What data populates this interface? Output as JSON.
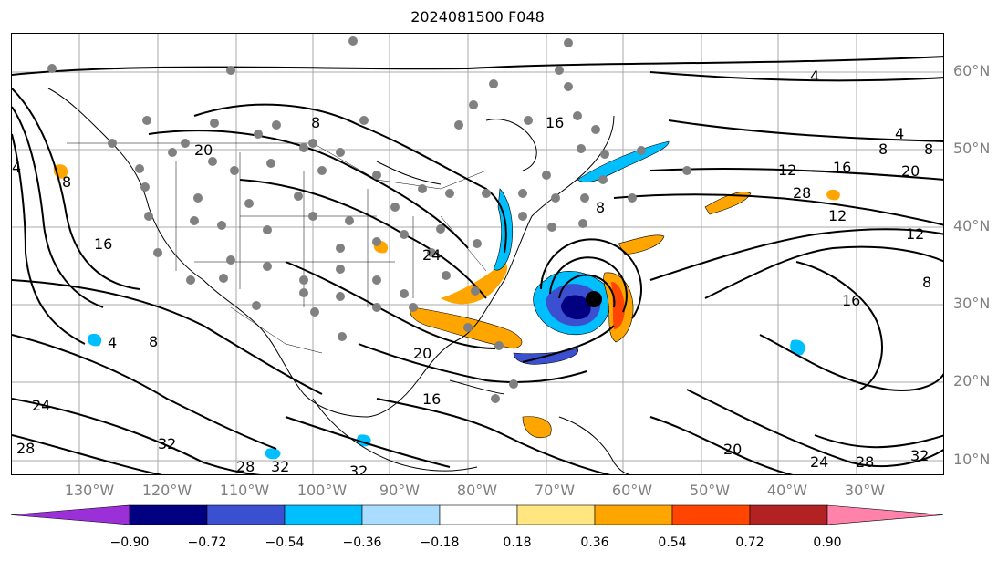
{
  "title": "2024081500 F048",
  "lat_labels": [
    "60°N",
    "50°N",
    "40°N",
    "30°N",
    "20°N",
    "10°N"
  ],
  "lon_labels": [
    "130°W",
    "120°W",
    "110°W",
    "100°W",
    "90°W",
    "80°W",
    "70°W",
    "60°W",
    "50°W",
    "40°W",
    "30°W"
  ],
  "colorbar": {
    "tick_labels": [
      "−0.90",
      "−0.72",
      "−0.54",
      "−0.36",
      "−0.18",
      "0.18",
      "0.36",
      "0.54",
      "0.72",
      "0.90"
    ],
    "colors": [
      "#9b30d9",
      "#000080",
      "#3a50d0",
      "#00bfff",
      "#aadcff",
      "#ffffff",
      "#ffe680",
      "#ffa500",
      "#ff4500",
      "#b22222",
      "#ff82ab"
    ]
  },
  "contour_labels": [
    "4",
    "8",
    "12",
    "16",
    "20",
    "24",
    "28",
    "32"
  ],
  "map": {
    "storm_marker_color": "#000000",
    "station_dot_color": "#808080"
  }
}
